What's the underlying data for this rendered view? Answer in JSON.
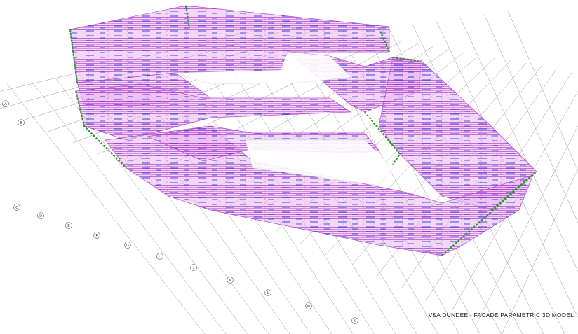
{
  "caption": "V&A DUNDEE - FACADE PARAMETRIC 3D MODEL",
  "colors": {
    "background": "#ffffff",
    "grid": "#9a9a9a",
    "panel_magenta": "#b040c8",
    "panel_fill": "#e8b0f0",
    "accent_blue": "#1f2de0",
    "accent_green": "#2a9a2a"
  },
  "grid_bubbles": [
    {
      "label": "A"
    },
    {
      "label": "B"
    },
    {
      "label": "C"
    },
    {
      "label": "D"
    },
    {
      "label": "E"
    },
    {
      "label": "F"
    },
    {
      "label": "G"
    },
    {
      "label": "H"
    },
    {
      "label": "J"
    },
    {
      "label": "K"
    },
    {
      "label": "L"
    },
    {
      "label": "M"
    },
    {
      "label": "N"
    }
  ]
}
